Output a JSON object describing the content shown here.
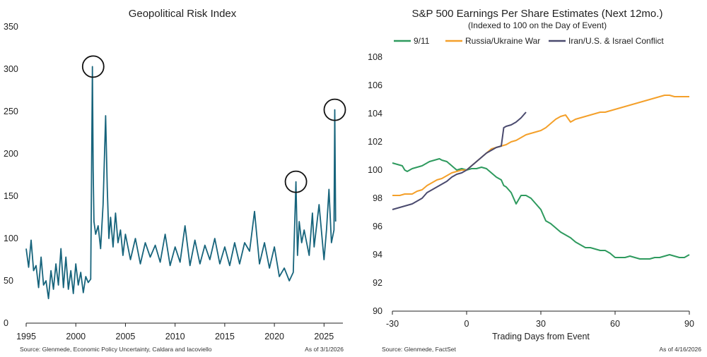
{
  "chart_data": [
    {
      "type": "line",
      "title": "Geopolitical Risk Index",
      "xlim": [
        1995,
        2026.9
      ],
      "ylim": [
        0,
        350
      ],
      "x_ticks": [
        "1995",
        "2000",
        "2005",
        "2010",
        "2015",
        "2020",
        "2025"
      ],
      "y_ticks": [
        "0",
        "50",
        "100",
        "150",
        "200",
        "250",
        "300",
        "350"
      ],
      "grid": false,
      "colors": {
        "series": "#17647c"
      },
      "series": [
        {
          "x": [
            1995.0,
            1995.25,
            1995.5,
            1995.75,
            1996.0,
            1996.25,
            1996.5,
            1996.75,
            1997.0,
            1997.25,
            1997.5,
            1997.75,
            1998.0,
            1998.25,
            1998.5,
            1998.75,
            1999.0,
            1999.25,
            1999.5,
            1999.75,
            2000.0,
            2000.25,
            2000.5,
            2000.75,
            2001.0,
            2001.25,
            2001.5,
            2001.67,
            2001.75,
            2001.83,
            2002.0,
            2002.25,
            2002.5,
            2002.75,
            2003.0,
            2003.17,
            2003.33,
            2003.5,
            2003.75,
            2004.0,
            2004.25,
            2004.5,
            2004.75,
            2005.0,
            2005.5,
            2006.0,
            2006.5,
            2007.0,
            2007.5,
            2008.0,
            2008.5,
            2009.0,
            2009.5,
            2010.0,
            2010.5,
            2011.0,
            2011.5,
            2012.0,
            2012.5,
            2013.0,
            2013.5,
            2014.0,
            2014.5,
            2015.0,
            2015.5,
            2016.0,
            2016.5,
            2017.0,
            2017.5,
            2018.0,
            2018.5,
            2019.0,
            2019.5,
            2020.0,
            2020.5,
            2021.0,
            2021.5,
            2021.9,
            2022.17,
            2022.33,
            2022.5,
            2022.75,
            2023.0,
            2023.5,
            2023.83,
            2024.0,
            2024.5,
            2025.0,
            2025.25,
            2025.5,
            2025.75,
            2026.0,
            2026.08,
            2026.17
          ],
          "values": [
            88,
            66,
            98,
            62,
            68,
            42,
            78,
            45,
            50,
            29,
            62,
            40,
            70,
            45,
            88,
            42,
            78,
            40,
            62,
            35,
            70,
            45,
            60,
            36,
            55,
            48,
            52,
            303,
            180,
            120,
            105,
            115,
            88,
            140,
            245,
            160,
            100,
            125,
            90,
            130,
            95,
            110,
            80,
            105,
            75,
            100,
            70,
            95,
            78,
            92,
            72,
            105,
            68,
            90,
            72,
            115,
            68,
            98,
            70,
            92,
            75,
            100,
            70,
            90,
            68,
            95,
            70,
            95,
            85,
            132,
            70,
            95,
            65,
            90,
            55,
            65,
            50,
            60,
            167,
            80,
            120,
            95,
            110,
            80,
            130,
            90,
            140,
            75,
            110,
            158,
            95,
            110,
            252,
            120
          ]
        }
      ],
      "annotations": [
        {
          "x": 2001.75,
          "y": 303
        },
        {
          "x": 2022.17,
          "y": 167
        },
        {
          "x": 2026.08,
          "y": 252
        }
      ],
      "source": "Source: Glenmede, Economic Policy Uncertainty, Caldara and Iacoviello",
      "as_of": "As of 3/1/2026"
    },
    {
      "type": "line",
      "title": "S&P 500 Earnings Per Share Estimates (Next 12mo.)",
      "subtitle": "(Indexed to 100 on the Day of Event)",
      "xlabel": "Trading Days from Event",
      "xlim": [
        -30,
        90
      ],
      "ylim": [
        90,
        108
      ],
      "x_ticks": [
        "-30",
        "0",
        "30",
        "60",
        "90"
      ],
      "y_ticks": [
        "90",
        "92",
        "94",
        "96",
        "98",
        "100",
        "102",
        "104",
        "106",
        "108"
      ],
      "grid": false,
      "legend": "top",
      "series": [
        {
          "name": "9/11",
          "color": "#2e9a5e",
          "x": [
            -30,
            -28,
            -26,
            -25,
            -24,
            -22,
            -20,
            -18,
            -15,
            -13,
            -11,
            -10,
            -8,
            -6,
            -4,
            -2,
            0,
            2,
            4,
            6,
            8,
            10,
            12,
            14,
            15,
            16,
            17,
            18,
            19,
            20,
            22,
            24,
            26,
            28,
            30,
            32,
            34,
            36,
            38,
            40,
            42,
            44,
            46,
            48,
            50,
            52,
            54,
            56,
            58,
            60,
            62,
            64,
            66,
            68,
            70,
            72,
            74,
            76,
            78,
            80,
            82,
            84,
            86,
            88,
            90
          ],
          "values": [
            100.5,
            100.4,
            100.3,
            100.0,
            99.9,
            100.1,
            100.2,
            100.3,
            100.6,
            100.7,
            100.8,
            100.7,
            100.6,
            100.3,
            100.0,
            100.1,
            100.0,
            100.1,
            100.1,
            100.2,
            100.1,
            99.8,
            99.5,
            99.3,
            98.9,
            98.8,
            98.6,
            98.4,
            98.0,
            97.6,
            98.2,
            98.2,
            98.0,
            97.6,
            97.2,
            96.4,
            96.2,
            95.9,
            95.6,
            95.4,
            95.2,
            94.9,
            94.7,
            94.5,
            94.5,
            94.4,
            94.3,
            94.3,
            94.1,
            93.8,
            93.8,
            93.8,
            93.9,
            93.8,
            93.7,
            93.7,
            93.7,
            93.8,
            93.8,
            93.9,
            94.0,
            93.9,
            93.8,
            93.8,
            94.0
          ]
        },
        {
          "name": "Russia/Ukraine War",
          "color": "#f4a02a",
          "x": [
            -30,
            -27,
            -25,
            -22,
            -20,
            -18,
            -16,
            -14,
            -12,
            -10,
            -8,
            -6,
            -4,
            -2,
            0,
            2,
            4,
            6,
            8,
            10,
            12,
            14,
            16,
            18,
            20,
            22,
            24,
            26,
            28,
            30,
            32,
            34,
            36,
            38,
            40,
            42,
            44,
            46,
            48,
            50,
            52,
            54,
            56,
            58,
            60,
            62,
            64,
            66,
            68,
            70,
            72,
            74,
            76,
            78,
            80,
            82,
            84,
            86,
            88,
            90
          ],
          "values": [
            98.2,
            98.2,
            98.3,
            98.3,
            98.5,
            98.6,
            98.9,
            99.1,
            99.3,
            99.4,
            99.6,
            99.8,
            99.9,
            100.0,
            100.0,
            100.3,
            100.6,
            100.9,
            101.2,
            101.5,
            101.6,
            101.7,
            101.8,
            102.0,
            102.1,
            102.3,
            102.5,
            102.6,
            102.7,
            102.8,
            103.0,
            103.3,
            103.6,
            103.8,
            103.9,
            103.4,
            103.6,
            103.7,
            103.8,
            103.9,
            104.0,
            104.1,
            104.1,
            104.2,
            104.3,
            104.4,
            104.5,
            104.6,
            104.7,
            104.8,
            104.9,
            105.0,
            105.1,
            105.2,
            105.3,
            105.3,
            105.2,
            105.2,
            105.2,
            105.2
          ]
        },
        {
          "name": "Iran/U.S. & Israel Conflict",
          "color": "#4a4a6e",
          "x": [
            -30,
            -28,
            -26,
            -24,
            -22,
            -20,
            -18,
            -16,
            -14,
            -12,
            -10,
            -8,
            -6,
            -4,
            -2,
            0,
            2,
            4,
            6,
            8,
            10,
            12,
            14,
            15,
            16,
            18,
            20,
            22,
            24
          ],
          "values": [
            97.2,
            97.3,
            97.4,
            97.5,
            97.6,
            97.8,
            98.0,
            98.4,
            98.6,
            98.8,
            99.0,
            99.2,
            99.5,
            99.7,
            99.8,
            100.0,
            100.3,
            100.6,
            100.9,
            101.2,
            101.4,
            101.6,
            101.7,
            103.0,
            103.1,
            103.2,
            103.4,
            103.7,
            104.1
          ]
        }
      ],
      "source": "Source: Glenmede, FactSet",
      "as_of": "As of 4/16/2026"
    }
  ]
}
